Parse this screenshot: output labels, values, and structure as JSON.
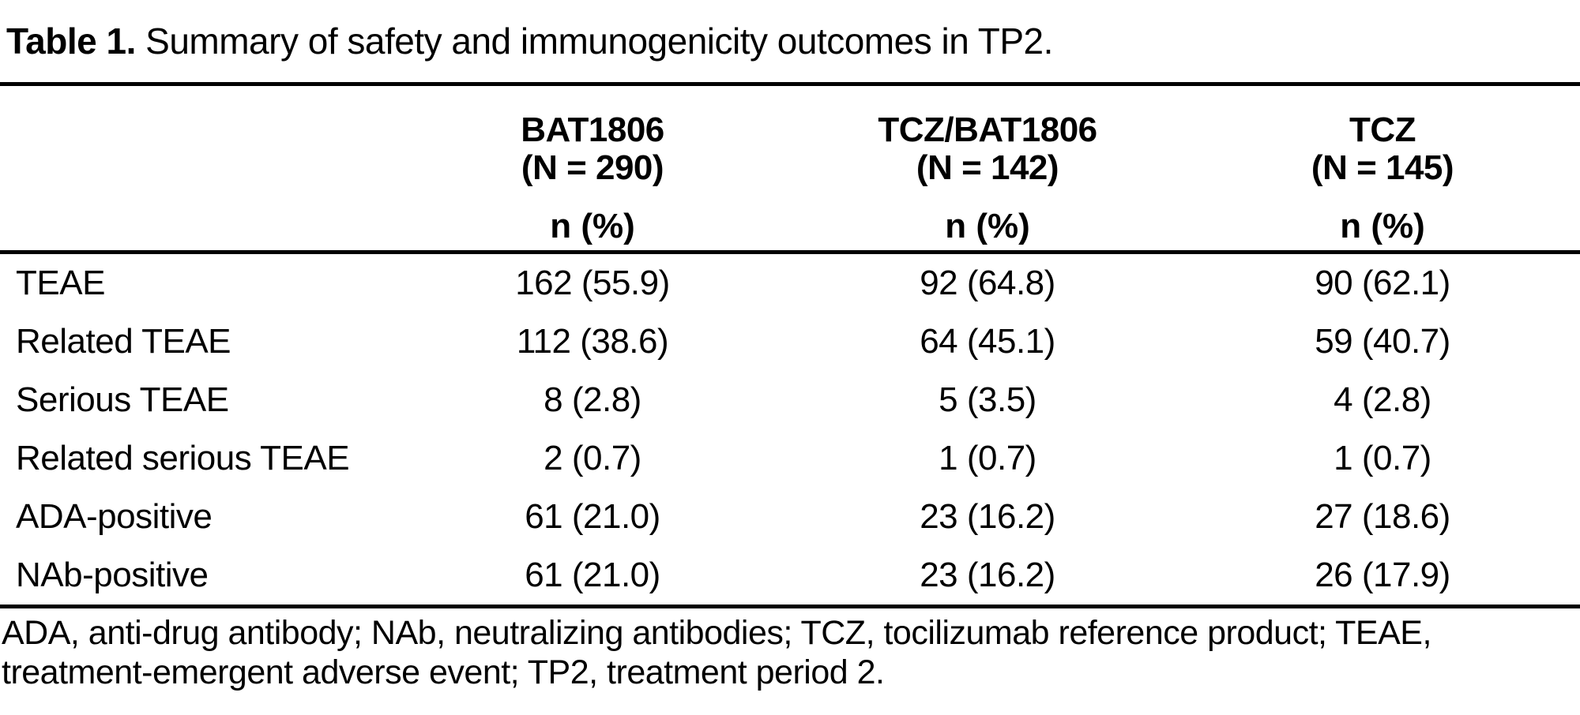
{
  "table": {
    "title_prefix": "Table 1.",
    "title_text": " Summary of safety and immunogenicity outcomes in TP2.",
    "columns": [
      {
        "name": "BAT1806",
        "n": "(N = 290)",
        "unit": "n (%)"
      },
      {
        "name": "TCZ/BAT1806",
        "n": "(N = 142)",
        "unit": "n (%)"
      },
      {
        "name": "TCZ",
        "n": "(N = 145)",
        "unit": "n (%)"
      }
    ],
    "rows": [
      {
        "label": "TEAE",
        "values": [
          "162 (55.9)",
          "92 (64.8)",
          "90 (62.1)"
        ]
      },
      {
        "label": "Related TEAE",
        "values": [
          "112 (38.6)",
          "64 (45.1)",
          "59 (40.7)"
        ]
      },
      {
        "label": "Serious TEAE",
        "values": [
          "8 (2.8)",
          "5 (3.5)",
          "4 (2.8)"
        ]
      },
      {
        "label": "Related serious TEAE",
        "values": [
          "2 (0.7)",
          "1 (0.7)",
          "1 (0.7)"
        ]
      },
      {
        "label": "ADA-positive",
        "values": [
          "61 (21.0)",
          "23 (16.2)",
          "27 (18.6)"
        ]
      },
      {
        "label": "NAb-positive",
        "values": [
          "61 (21.0)",
          "23 (16.2)",
          "26 (17.9)"
        ]
      }
    ],
    "footnote_line1": "ADA, anti-drug antibody; NAb, neutralizing antibodies; TCZ, tocilizumab reference product; TEAE,",
    "footnote_line2": "treatment-emergent adverse event; TP2, treatment period 2.",
    "text_color": "#000000",
    "background_color": "#ffffff"
  },
  "chart_data": {
    "type": "table",
    "title": "Table 1. Summary of safety and immunogenicity outcomes in TP2.",
    "columns": [
      "",
      "BAT1806 (N = 290) n (%)",
      "TCZ/BAT1806 (N = 142) n (%)",
      "TCZ (N = 145) n (%)"
    ],
    "rows": [
      [
        "TEAE",
        "162 (55.9)",
        "92 (64.8)",
        "90 (62.1)"
      ],
      [
        "Related TEAE",
        "112 (38.6)",
        "64 (45.1)",
        "59 (40.7)"
      ],
      [
        "Serious TEAE",
        "8 (2.8)",
        "5 (3.5)",
        "4 (2.8)"
      ],
      [
        "Related serious TEAE",
        "2 (0.7)",
        "1 (0.7)",
        "1 (0.7)"
      ],
      [
        "ADA-positive",
        "61 (21.0)",
        "23 (16.2)",
        "27 (18.6)"
      ],
      [
        "NAb-positive",
        "61 (21.0)",
        "23 (16.2)",
        "26 (17.9)"
      ]
    ],
    "footnote": "ADA, anti-drug antibody; NAb, neutralizing antibodies; TCZ, tocilizumab reference product; TEAE, treatment-emergent adverse event; TP2, treatment period 2."
  }
}
